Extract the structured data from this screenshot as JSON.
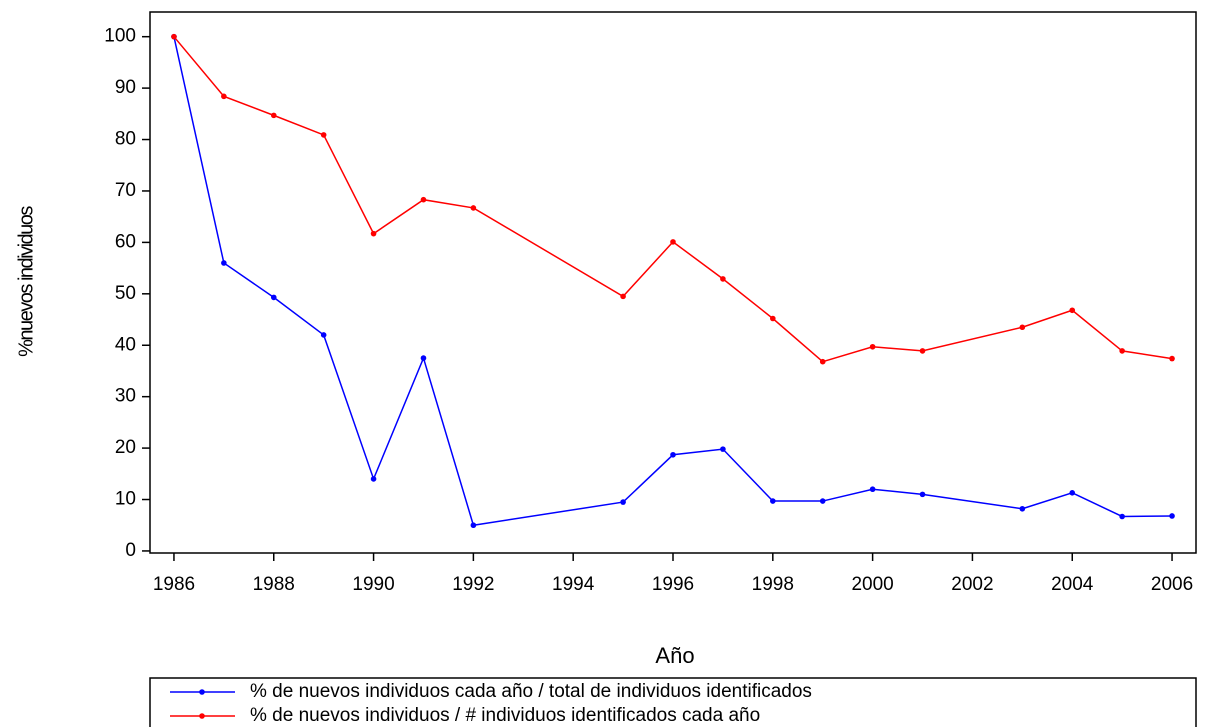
{
  "chart_data": {
    "type": "line",
    "xlabel": "Año",
    "ylabel": "%nuevos individuos",
    "x": [
      1986,
      1987,
      1988,
      1989,
      1990,
      1991,
      1992,
      1995,
      1996,
      1997,
      1998,
      1999,
      2000,
      2001,
      2003,
      2004,
      2005,
      2006
    ],
    "series": [
      {
        "name": "% de nuevos individuos cada año / total de individuos identificados",
        "color": "#0000ff",
        "values": [
          100,
          56,
          49.3,
          42,
          14,
          37.5,
          5,
          9.5,
          18.7,
          19.8,
          9.7,
          9.7,
          12,
          11,
          8.2,
          11.3,
          6.7,
          6.8
        ]
      },
      {
        "name": "% de nuevos individuos / # individuos identificados cada año",
        "color": "#ff0000",
        "values": [
          100,
          88.4,
          84.7,
          80.9,
          61.7,
          68.3,
          66.7,
          49.5,
          60.1,
          52.9,
          45.2,
          36.8,
          39.7,
          38.9,
          43.5,
          46.8,
          38.9,
          37.4
        ]
      }
    ],
    "xlim": [
      1985.52,
      2006.48
    ],
    "xticks": [
      1986,
      1988,
      1990,
      1992,
      1994,
      1996,
      1998,
      2000,
      2002,
      2004,
      2006
    ],
    "ylim": [
      -0.4,
      104.8
    ],
    "yticks": [
      0,
      10,
      20,
      30,
      40,
      50,
      60,
      70,
      80,
      90,
      100
    ],
    "legend": "bottom"
  }
}
